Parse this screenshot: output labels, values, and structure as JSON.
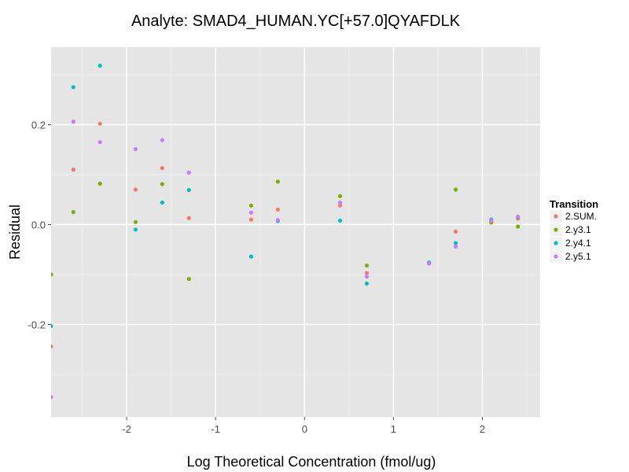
{
  "chart_data": {
    "type": "scatter",
    "title": "Analyte: SMAD4_HUMAN.YC[+57.0]QYAFDLK",
    "xlabel": "Log Theoretical Concentration (fmol/ug)",
    "ylabel": "Residual",
    "xlim": [
      -2.85,
      2.65
    ],
    "ylim": [
      -0.385,
      0.355
    ],
    "x_ticks": [
      -2,
      -1,
      0,
      1,
      2
    ],
    "x_tick_labels": [
      "-2",
      "-1",
      "0",
      "1",
      "2"
    ],
    "y_ticks": [
      -0.2,
      0.0,
      0.2
    ],
    "y_tick_labels": [
      "-0.2",
      "0.0",
      "0.2"
    ],
    "grid": true,
    "legend": {
      "title": "Transition",
      "position": "right"
    },
    "series": [
      {
        "name": "2.SUM.",
        "color": "#F8766D",
        "points": [
          [
            -2.85,
            -0.244
          ],
          [
            -2.6,
            0.11
          ],
          [
            -2.3,
            0.202
          ],
          [
            -1.9,
            0.07
          ],
          [
            -1.6,
            0.113
          ],
          [
            -1.3,
            0.013
          ],
          [
            -0.6,
            0.01
          ],
          [
            -0.3,
            0.03
          ],
          [
            0.4,
            0.038
          ],
          [
            0.7,
            -0.097
          ],
          [
            1.4,
            -0.077
          ],
          [
            1.7,
            -0.014
          ],
          [
            2.1,
            0.006
          ],
          [
            2.4,
            0.012
          ]
        ]
      },
      {
        "name": "2.y3.1",
        "color": "#7CAE00",
        "points": [
          [
            -2.85,
            -0.1
          ],
          [
            -2.6,
            0.025
          ],
          [
            -2.3,
            0.082
          ],
          [
            -1.9,
            0.005
          ],
          [
            -1.6,
            0.081
          ],
          [
            -1.3,
            -0.109
          ],
          [
            -0.6,
            0.038
          ],
          [
            -0.3,
            0.086
          ],
          [
            0.4,
            0.057
          ],
          [
            0.7,
            -0.082
          ],
          [
            1.4,
            -0.078
          ],
          [
            1.7,
            0.07
          ],
          [
            2.1,
            0.004
          ],
          [
            2.4,
            -0.004
          ]
        ]
      },
      {
        "name": "2.y4.1",
        "color": "#00BFC4",
        "points": [
          [
            -2.85,
            -0.203
          ],
          [
            -2.6,
            0.275
          ],
          [
            -2.3,
            0.318
          ],
          [
            -1.9,
            -0.01
          ],
          [
            -1.6,
            0.044
          ],
          [
            -1.3,
            0.069
          ],
          [
            -0.6,
            -0.064
          ],
          [
            -0.3,
            0.007
          ],
          [
            0.4,
            0.008
          ],
          [
            0.7,
            -0.118
          ],
          [
            1.4,
            -0.076
          ],
          [
            1.7,
            -0.037
          ],
          [
            2.1,
            0.01
          ],
          [
            2.4,
            0.015
          ]
        ]
      },
      {
        "name": "2.y5.1",
        "color": "#C77CFF",
        "points": [
          [
            -2.85,
            -0.345
          ],
          [
            -2.6,
            0.206
          ],
          [
            -2.3,
            0.165
          ],
          [
            -1.9,
            0.151
          ],
          [
            -1.6,
            0.169
          ],
          [
            -1.3,
            0.104
          ],
          [
            -0.6,
            0.024
          ],
          [
            -0.3,
            0.009
          ],
          [
            0.4,
            0.044
          ],
          [
            0.7,
            -0.104
          ],
          [
            1.4,
            -0.078
          ],
          [
            1.7,
            -0.044
          ],
          [
            2.1,
            0.008
          ],
          [
            2.4,
            0.016
          ]
        ]
      }
    ]
  }
}
